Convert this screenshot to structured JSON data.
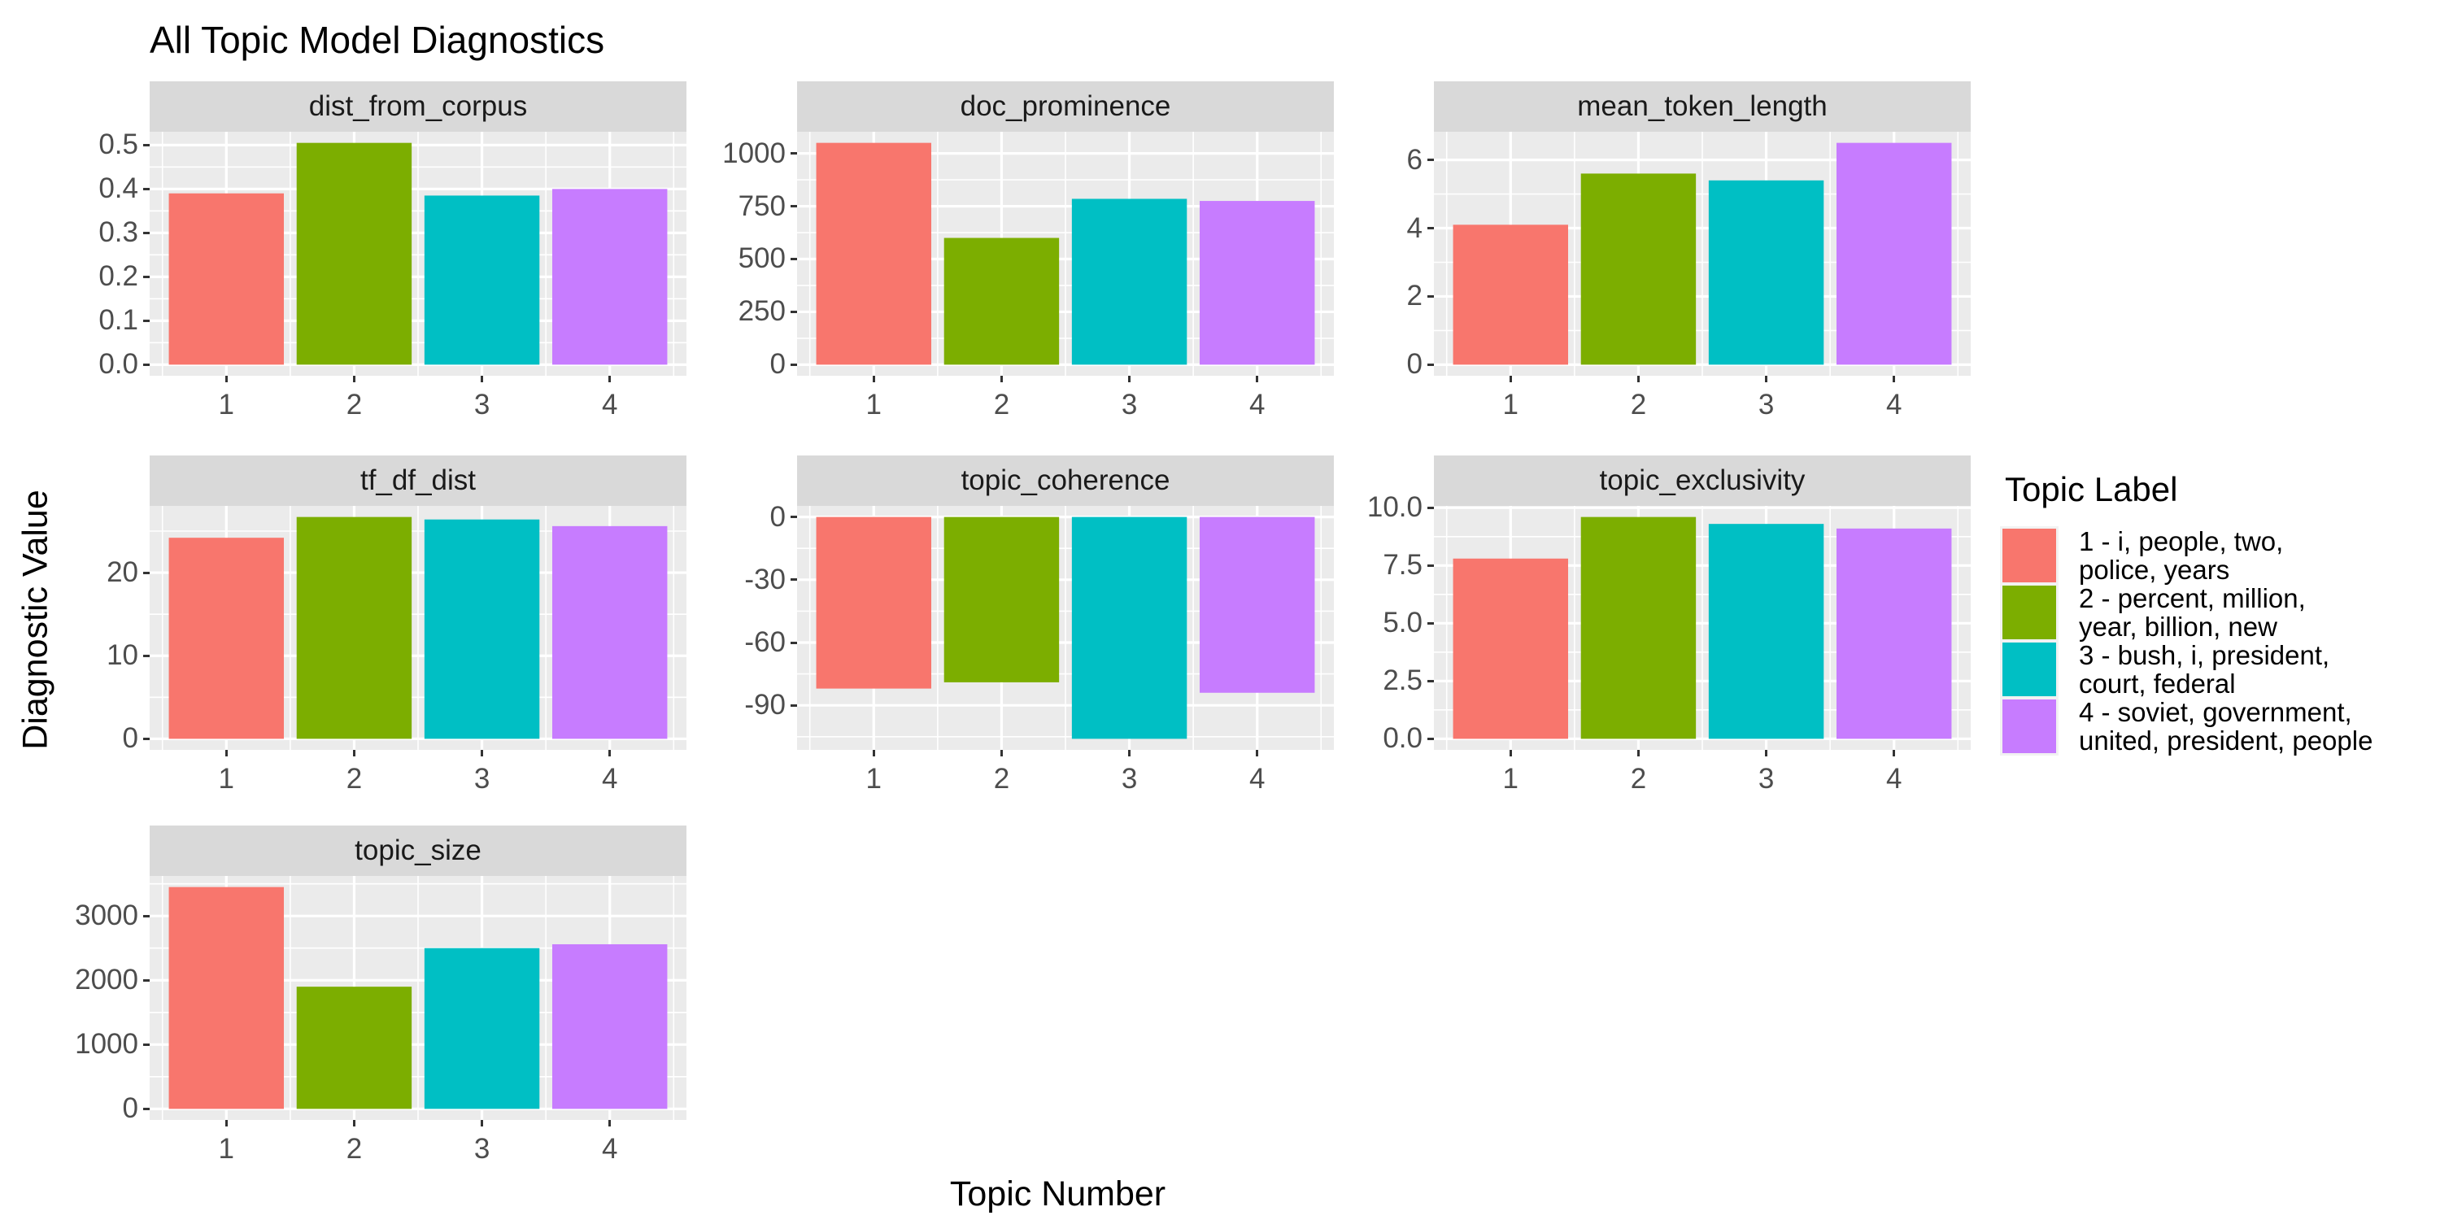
{
  "chart_data": {
    "type": "bar",
    "title": "All Topic Model Diagnostics",
    "xlabel": "Topic Number",
    "ylabel": "Diagnostic Value",
    "categories": [
      "1",
      "2",
      "3",
      "4"
    ],
    "palette": [
      "#F8766D",
      "#7CAE00",
      "#00BFC4",
      "#C77CFF"
    ],
    "colors": {
      "panel_bg": "#EBEBEB",
      "strip_bg": "#D9D9D9",
      "grid": "#FFFFFF",
      "tick_text": "#4D4D4D",
      "tick_mark": "#333333",
      "title_text": "#000000"
    },
    "grid": "on",
    "legend_position": "right",
    "facets": [
      {
        "name": "dist_from_corpus",
        "values": [
          0.39,
          0.505,
          0.385,
          0.4
        ],
        "ylim": [
          -0.0253,
          0.5303
        ],
        "yticks": [
          {
            "v": 0.0,
            "label": "0.0"
          },
          {
            "v": 0.1,
            "label": "0.1"
          },
          {
            "v": 0.2,
            "label": "0.2"
          },
          {
            "v": 0.3,
            "label": "0.3"
          },
          {
            "v": 0.4,
            "label": "0.4"
          },
          {
            "v": 0.5,
            "label": "0.5"
          }
        ]
      },
      {
        "name": "doc_prominence",
        "values": [
          1050,
          600,
          785,
          775
        ],
        "ylim": [
          -52.5,
          1102.5
        ],
        "yticks": [
          {
            "v": 0,
            "label": "0"
          },
          {
            "v": 250,
            "label": "250"
          },
          {
            "v": 500,
            "label": "500"
          },
          {
            "v": 750,
            "label": "750"
          },
          {
            "v": 1000,
            "label": "1000"
          }
        ]
      },
      {
        "name": "mean_token_length",
        "values": [
          4.1,
          5.6,
          5.4,
          6.5
        ],
        "ylim": [
          -0.325,
          6.825
        ],
        "yticks": [
          {
            "v": 0,
            "label": "0"
          },
          {
            "v": 2,
            "label": "2"
          },
          {
            "v": 4,
            "label": "4"
          },
          {
            "v": 6,
            "label": "6"
          }
        ]
      },
      {
        "name": "tf_df_dist",
        "values": [
          24.2,
          26.7,
          26.4,
          25.6
        ],
        "ylim": [
          -1.335,
          28.035
        ],
        "yticks": [
          {
            "v": 0,
            "label": "0"
          },
          {
            "v": 10,
            "label": "10"
          },
          {
            "v": 20,
            "label": "20"
          }
        ]
      },
      {
        "name": "topic_coherence",
        "values": [
          -82,
          -79,
          -106,
          -84
        ],
        "ylim": [
          -111.3,
          5.3
        ],
        "yticks": [
          {
            "v": -90,
            "label": "-90"
          },
          {
            "v": -60,
            "label": "-60"
          },
          {
            "v": -30,
            "label": "-30"
          },
          {
            "v": 0,
            "label": "0"
          }
        ]
      },
      {
        "name": "topic_exclusivity",
        "values": [
          7.8,
          9.6,
          9.3,
          9.1
        ],
        "ylim": [
          -0.48,
          10.08
        ],
        "yticks": [
          {
            "v": 0,
            "label": "0.0"
          },
          {
            "v": 2.5,
            "label": "2.5"
          },
          {
            "v": 5,
            "label": "5.0"
          },
          {
            "v": 7.5,
            "label": "7.5"
          },
          {
            "v": 10,
            "label": "10.0"
          }
        ]
      },
      {
        "name": "topic_size",
        "values": [
          3450,
          1900,
          2500,
          2560
        ],
        "ylim": [
          -172.5,
          3622.5
        ],
        "yticks": [
          {
            "v": 0,
            "label": "0"
          },
          {
            "v": 1000,
            "label": "1000"
          },
          {
            "v": 2000,
            "label": "2000"
          },
          {
            "v": 3000,
            "label": "3000"
          }
        ]
      }
    ],
    "legend": {
      "title": "Topic Label",
      "entries": [
        {
          "color": "#F8766D",
          "label": "1 - i, people, two, police, years",
          "lines": [
            "1 - i, people, two,",
            "police, years"
          ]
        },
        {
          "color": "#7CAE00",
          "label": "2 - percent, million, year, billion, new",
          "lines": [
            "2 - percent, million,",
            "year, billion, new"
          ]
        },
        {
          "color": "#00BFC4",
          "label": "3 - bush, i, president, court, federal",
          "lines": [
            "3 - bush, i, president,",
            "court, federal"
          ]
        },
        {
          "color": "#C77CFF",
          "label": "4 - soviet, government, united, president, people",
          "lines": [
            "4 - soviet, government,",
            "united, president, people"
          ]
        }
      ]
    }
  }
}
